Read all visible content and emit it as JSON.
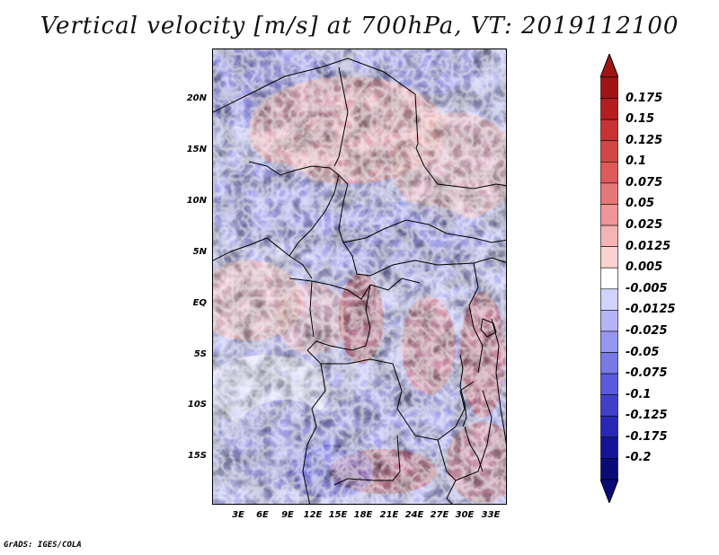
{
  "title": "Vertical velocity [m/s] at 700hPa, VT: 2019112100",
  "credit": "GrADS: IGES/COLA",
  "colors": {
    "strong_up": "#2d0f9e",
    "mid_blue": "#6a6ae8",
    "light_blue": "#c8c8f5",
    "white": "#ffffff",
    "light_red": "#f5c8c8",
    "mid_red": "#e87070",
    "strong_down": "#a01818",
    "borders": "#000000"
  },
  "map": {
    "latitude_labels": [
      "20N",
      "15N",
      "10N",
      "5N",
      "EQ",
      "5S",
      "10S",
      "15S"
    ],
    "longitude_labels": [
      "3E",
      "6E",
      "9E",
      "12E",
      "15E",
      "18E",
      "21E",
      "24E",
      "27E",
      "30E",
      "33E"
    ]
  },
  "colorbar": {
    "labels": [
      "0.175",
      "0.15",
      "0.125",
      "0.1",
      "0.075",
      "0.05",
      "0.025",
      "0.0125",
      "0.005",
      "-0.005",
      "-0.0125",
      "-0.025",
      "-0.05",
      "-0.075",
      "-0.1",
      "-0.125",
      "-0.175",
      "-0.2"
    ],
    "colors": [
      "#a01414",
      "#b41e1e",
      "#c83232",
      "#d24646",
      "#dc5a5a",
      "#e67878",
      "#f09696",
      "#f5b4b4",
      "#fad2d2",
      "#ffffff",
      "#d2d2fa",
      "#b4b4f5",
      "#9696f0",
      "#7878e6",
      "#5a5adc",
      "#4040c8",
      "#2828b4",
      "#141496",
      "#0a0a78"
    ]
  }
}
